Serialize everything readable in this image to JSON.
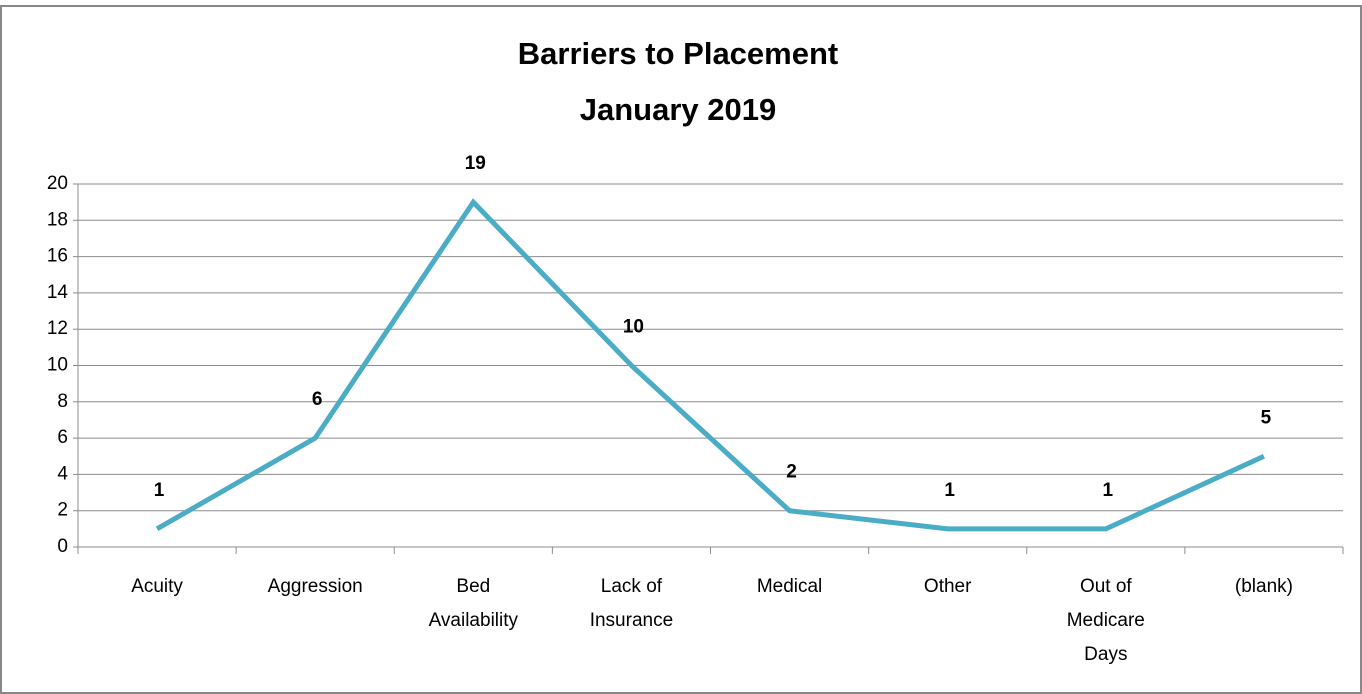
{
  "chart_data": {
    "type": "line",
    "title": "Barriers to Placement",
    "subtitle": "January 2019",
    "categories": [
      "Acuity",
      "Aggression",
      "Bed Availability",
      "Lack of Insurance",
      "Medical",
      "Other",
      "Out of Medicare Days",
      "(blank)"
    ],
    "values": [
      1,
      6,
      19,
      10,
      2,
      1,
      1,
      5
    ],
    "color": "#4bacc6",
    "ylim": [
      0,
      20
    ],
    "yticks": [
      0,
      2,
      4,
      6,
      8,
      10,
      12,
      14,
      16,
      18,
      20
    ],
    "grid": true
  }
}
